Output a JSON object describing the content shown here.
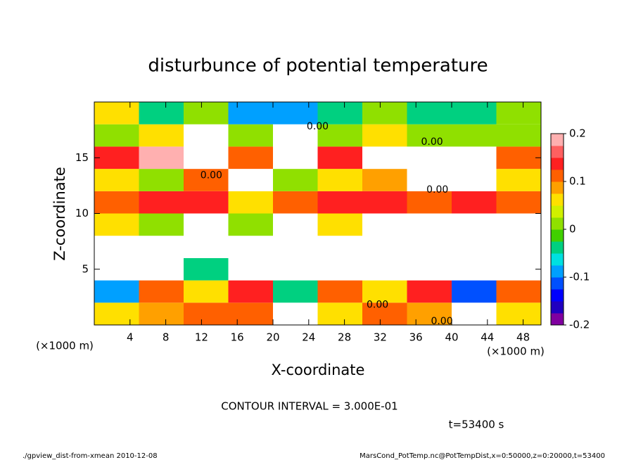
{
  "chart_data": {
    "type": "contour",
    "title": "disturbunce of potential temperature",
    "x_label": "X-coordinate",
    "y_label": "Z-coordinate",
    "x_unit": "(×1000 m)",
    "y_unit": "(×1000 m)",
    "contour_interval": "CONTOUR INTERVAL = 3.000E-01",
    "time_label": "t=53400 s",
    "footer_left": "./gpview_dist-from-xmean  2010-12-08",
    "footer_right": "MarsCond_PotTemp.nc@PotTempDist,x=0:50000,z=0:20000,t=53400",
    "xlim": [
      0,
      50
    ],
    "ylim": [
      0,
      20
    ],
    "xticks": [
      4,
      8,
      12,
      16,
      20,
      24,
      28,
      32,
      36,
      40,
      44,
      48
    ],
    "yticks": [
      5,
      10,
      15
    ],
    "field": {
      "x": [
        2.5,
        7.5,
        12.5,
        17.5,
        22.5,
        27.5,
        32.5,
        37.5,
        42.5,
        47.5
      ],
      "y": [
        1,
        3,
        5,
        7,
        9,
        11,
        13,
        15,
        17,
        19
      ],
      "values": [
        [
          0.05,
          0.08,
          0.1,
          0.12,
          0.25,
          0.05,
          0.1,
          0.08,
          0.25,
          0.05
        ],
        [
          -0.1,
          0.12,
          0.05,
          0.15,
          -0.05,
          0.1,
          0.05,
          0.15,
          -0.12,
          0.1
        ],
        [
          0.25,
          0.25,
          -0.05,
          0.25,
          0.25,
          0.25,
          0.25,
          0.25,
          0.25,
          0.25
        ],
        [
          0.25,
          0.25,
          0.25,
          0.25,
          0.25,
          0.25,
          0.25,
          0.25,
          0.25,
          0.25
        ],
        [
          0.05,
          0.02,
          0.25,
          0.0,
          0.25,
          0.05,
          0.25,
          0.25,
          0.25,
          0.25
        ],
        [
          0.12,
          0.15,
          0.15,
          0.05,
          0.12,
          0.15,
          0.15,
          0.1,
          0.15,
          0.12
        ],
        [
          0.05,
          0.0,
          0.1,
          0.25,
          0.0,
          0.05,
          0.08,
          0.25,
          0.25,
          0.05
        ],
        [
          0.15,
          0.18,
          0.25,
          0.1,
          0.25,
          0.15,
          0.25,
          0.25,
          0.25,
          0.12
        ],
        [
          0.02,
          0.05,
          0.25,
          0.0,
          0.25,
          0.0,
          0.05,
          0.0,
          0.02,
          0.0
        ],
        [
          0.05,
          -0.05,
          0.0,
          -0.08,
          -0.1,
          -0.05,
          0.0,
          -0.05,
          -0.05,
          0.0
        ]
      ]
    },
    "contour_labels": [
      {
        "text": "0.00",
        "x": 25,
        "z": 17.8
      },
      {
        "text": "0.00",
        "x": 37.8,
        "z": 16.4
      },
      {
        "text": "0.00",
        "x": 38.4,
        "z": 12.1
      },
      {
        "text": "0.00",
        "x": 13.1,
        "z": 13.4
      },
      {
        "text": "0.00",
        "x": 31.7,
        "z": 1.8
      },
      {
        "text": "0.00",
        "x": 38.9,
        "z": 0.3
      }
    ],
    "colorbar": {
      "lim": [
        -0.2,
        0.2
      ],
      "ticks": [
        0.2,
        0.1,
        0,
        -0.1,
        -0.2
      ],
      "colors": [
        "#8000a0",
        "#2000c0",
        "#0000ff",
        "#0050ff",
        "#00a0ff",
        "#00e0e0",
        "#00d080",
        "#40d000",
        "#90e000",
        "#d0f000",
        "#ffe000",
        "#ffa000",
        "#ff6000",
        "#ff2020",
        "#ff6060",
        "#ffb0b0"
      ],
      "over_color": "#ffffff"
    }
  }
}
